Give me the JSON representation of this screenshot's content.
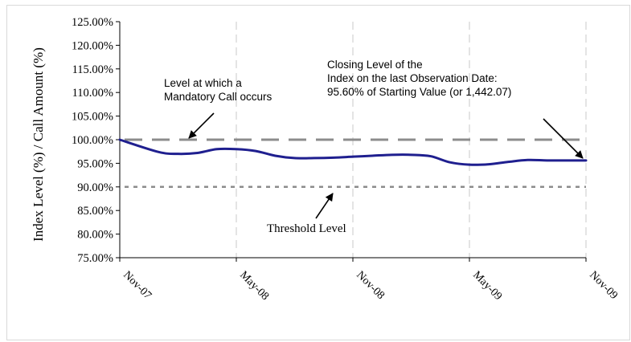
{
  "chart_data": {
    "type": "line",
    "ylabel": "Index Level (%) / Call Amount (%)",
    "xlabel": "",
    "x_ticks": [
      "Nov-07",
      "May-08",
      "Nov-08",
      "May-09",
      "Nov-09"
    ],
    "y_ticks": [
      "125.00%",
      "120.00%",
      "115.00%",
      "110.00%",
      "105.00%",
      "100.00%",
      "95.00%",
      "90.00%",
      "85.00%",
      "80.00%",
      "75.00%"
    ],
    "ylim": [
      75,
      125
    ],
    "xlim": [
      "2007-11",
      "2009-11"
    ],
    "grid": "vertical dashed at x ticks",
    "series": [
      {
        "color": "#1f1f8f",
        "x": [
          "2007-11",
          "2008-01",
          "2008-02",
          "2008-03",
          "2008-04",
          "2008-05",
          "2008-06",
          "2008-07",
          "2008-08",
          "2008-09",
          "2008-10",
          "2008-11",
          "2008-12",
          "2009-01",
          "2009-02",
          "2009-03",
          "2009-04",
          "2009-05",
          "2009-06",
          "2009-07",
          "2009-08",
          "2009-09",
          "2009-10",
          "2009-11"
        ],
        "values": [
          100.0,
          97.4,
          97.0,
          97.2,
          98.0,
          98.0,
          97.6,
          96.6,
          96.1,
          96.1,
          96.2,
          96.4,
          96.6,
          96.8,
          96.8,
          96.5,
          95.2,
          94.7,
          94.8,
          95.3,
          95.7,
          95.6,
          95.6,
          95.6
        ]
      }
    ],
    "reference_lines": [
      {
        "value": 100,
        "style": "long-dash",
        "color": "#8c8c8c"
      },
      {
        "value": 90,
        "style": "dotted",
        "color": "#8c8c8c"
      }
    ],
    "annotations": [
      {
        "lines": [
          "Level at which a",
          "Mandatory Call occurs"
        ]
      },
      {
        "lines": [
          "Closing Level of the",
          "Index on the last Observation Date:",
          "95.60% of Starting Value (or 1,442.07)"
        ]
      },
      {
        "lines": [
          "Threshold Level"
        ]
      }
    ]
  }
}
